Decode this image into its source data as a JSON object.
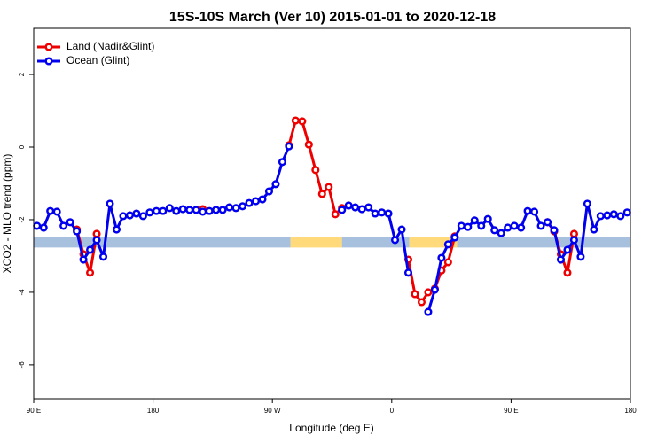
{
  "chart_data": {
    "type": "line",
    "title": "15S-10S March (Ver 10)   2015-01-01 to 2020-12-18",
    "x_label": "Longitude (deg E)",
    "y_label": "XCO2 - MLO trend (ppm)",
    "xlim": [
      90,
      540
    ],
    "xticks": [
      {
        "value": 90,
        "label": "90 E"
      },
      180,
      {
        "value": 270,
        "label": "90 W"
      },
      {
        "value": 360,
        "label": "0"
      },
      {
        "value": 450,
        "label": "90 E"
      },
      {
        "value": 540,
        "label": "180"
      }
    ],
    "ylim": [
      -6.93,
      3.27
    ],
    "yticks": [
      -6,
      -4,
      -2,
      0,
      2
    ],
    "legend": "top-left",
    "x": [
      92.5,
      97.5,
      102.5,
      107.5,
      112.5,
      117.5,
      122.5,
      127.5,
      132.5,
      137.5,
      142.5,
      147.5,
      152.5,
      157.5,
      162.5,
      167.5,
      172.5,
      177.5,
      182.5,
      187.5,
      192.5,
      197.5,
      202.5,
      207.5,
      212.5,
      217.5,
      222.5,
      227.5,
      232.5,
      237.5,
      242.5,
      247.5,
      252.5,
      257.5,
      262.5,
      267.5,
      272.5,
      277.5,
      282.5,
      287.5,
      292.5,
      297.5,
      302.5,
      307.5,
      312.5,
      317.5,
      322.5,
      327.5,
      332.5,
      337.5,
      342.5,
      347.5,
      352.5,
      357.5,
      362.5,
      367.5,
      372.5,
      377.5,
      382.5,
      387.5,
      392.5,
      397.5,
      402.5,
      407.5,
      412.5,
      417.5,
      422.5,
      427.5,
      432.5,
      437.5,
      442.5,
      447.5,
      452.5,
      457.5,
      462.5,
      467.5,
      472.5,
      477.5,
      482.5,
      487.5,
      492.5,
      497.5,
      502.5,
      507.5,
      512.5,
      517.5,
      522.5,
      527.5,
      532.5,
      537.5
    ],
    "series": [
      {
        "name": "Land (Nadir&Glint)",
        "color": "#ee0000",
        "values": [
          null,
          null,
          null,
          null,
          null,
          null,
          -2.27,
          -2.95,
          -3.46,
          -2.39,
          null,
          null,
          null,
          null,
          null,
          null,
          null,
          null,
          null,
          null,
          null,
          null,
          null,
          null,
          null,
          -1.71,
          null,
          null,
          null,
          null,
          null,
          null,
          null,
          null,
          null,
          null,
          null,
          null,
          0.05,
          0.73,
          0.71,
          0.07,
          -0.63,
          -1.29,
          -1.1,
          -1.85,
          -1.68,
          null,
          null,
          null,
          null,
          null,
          null,
          null,
          null,
          null,
          -3.1,
          -4.05,
          -4.27,
          -4.0,
          -3.9,
          -3.4,
          -3.17,
          -2.46,
          null,
          null,
          null,
          null,
          null,
          null,
          null,
          null,
          null,
          null,
          null,
          null,
          null,
          -2.07,
          -2.32,
          -2.95,
          -3.46,
          -2.39,
          null,
          null,
          null,
          null,
          null,
          null,
          null,
          null
        ]
      },
      {
        "name": "Ocean (Glint)",
        "color": "#0000ee",
        "values": [
          -2.17,
          -2.22,
          -1.76,
          -1.78,
          -2.17,
          -2.07,
          -2.32,
          -3.1,
          -2.83,
          -2.56,
          -3.02,
          -1.56,
          -2.27,
          -1.9,
          -1.88,
          -1.83,
          -1.9,
          -1.8,
          -1.76,
          -1.76,
          -1.68,
          -1.76,
          -1.71,
          -1.73,
          -1.73,
          -1.78,
          -1.76,
          -1.73,
          -1.73,
          -1.66,
          -1.68,
          -1.63,
          -1.54,
          -1.49,
          -1.44,
          -1.22,
          -1.02,
          -0.41,
          0.02,
          null,
          null,
          null,
          null,
          null,
          null,
          null,
          -1.73,
          -1.61,
          -1.66,
          -1.71,
          -1.66,
          -1.83,
          -1.8,
          -1.83,
          -2.56,
          -2.27,
          -3.46,
          null,
          null,
          -4.54,
          -3.93,
          -3.05,
          -2.68,
          -2.49,
          -2.17,
          -2.2,
          -2.02,
          -2.17,
          -1.98,
          -2.29,
          -2.37,
          -2.22,
          -2.17,
          -2.22,
          -1.76,
          -1.78,
          -2.17,
          -2.07,
          -2.29,
          -3.1,
          -2.83,
          -2.56,
          -3.02,
          -1.56,
          -2.27,
          -1.9,
          -1.88,
          -1.85,
          -1.9,
          -1.8
        ]
      }
    ],
    "band": {
      "value": -2.62,
      "segments": [
        {
          "from": 90,
          "to": 283.7,
          "color": "#a7c0de"
        },
        {
          "from": 283.7,
          "to": 322.5,
          "color": "#ffd97a"
        },
        {
          "from": 322.5,
          "to": 373.2,
          "color": "#a7c0de"
        },
        {
          "from": 373.2,
          "to": 409.3,
          "color": "#ffd97a"
        },
        {
          "from": 409.3,
          "to": 540,
          "color": "#a7c0de"
        }
      ]
    }
  }
}
